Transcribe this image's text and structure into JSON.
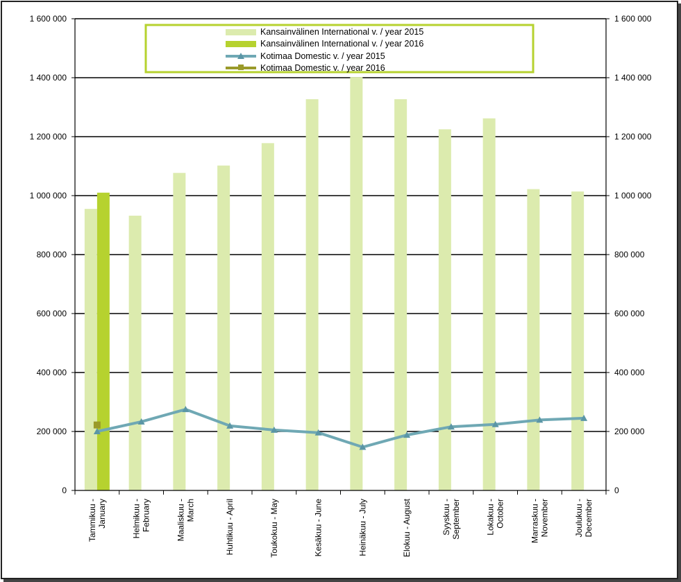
{
  "colors": {
    "intl_2015": "#dcebae",
    "intl_2016": "#b6d22f",
    "dom_2015": "#6fa8b4",
    "dom_2015_marker": "#5b96a6",
    "dom_2016": "#9a9a2a",
    "legend_border": "#b6d22f",
    "grid": "#000000"
  },
  "chart_data": {
    "type": "bar",
    "categories": [
      [
        "Tammikuu -",
        "January"
      ],
      [
        "Helmikuu -",
        "February"
      ],
      [
        "Maaliskuu -",
        "March"
      ],
      [
        "Huhtikuu - April"
      ],
      [
        "Toukokuu - May"
      ],
      [
        "Kesäkuu - June"
      ],
      [
        "Heinäkuu - July"
      ],
      [
        "Elokuu - August"
      ],
      [
        "Syyskuu -",
        "September"
      ],
      [
        "Lokakuu -",
        "October"
      ],
      [
        "Marraskuu -",
        "November"
      ],
      [
        "Joulukuu -",
        "December"
      ]
    ],
    "ylim": [
      0,
      1600000
    ],
    "yticks": [
      0,
      200000,
      400000,
      600000,
      800000,
      1000000,
      1200000,
      1400000,
      1600000
    ],
    "ytick_labels": [
      "0",
      "200 000",
      "400 000",
      "600 000",
      "800 000",
      "1 000 000",
      "1 200 000",
      "1 400 000",
      "1 600 000"
    ],
    "grid": true,
    "secondary_axis": true,
    "legend_position": "top-center",
    "series": [
      {
        "name": "Kansainvälinen International v. / year 2015",
        "kind": "bar",
        "values": [
          955000,
          932000,
          1077000,
          1102000,
          1178000,
          1327000,
          1402000,
          1327000,
          1225000,
          1262000,
          1022000,
          1014000
        ]
      },
      {
        "name": "Kansainvälinen International v. / year 2016",
        "kind": "bar",
        "values": [
          1010000,
          null,
          null,
          null,
          null,
          null,
          null,
          null,
          null,
          null,
          null,
          null
        ]
      },
      {
        "name": "Kotimaa Domestic v. / year 2015",
        "kind": "line",
        "marker": "triangle",
        "values": [
          200000,
          233000,
          275000,
          219000,
          205000,
          196000,
          147000,
          188000,
          216000,
          224000,
          239000,
          245000
        ]
      },
      {
        "name": "Kotimaa Domestic v. / year 2016",
        "kind": "line",
        "marker": "square",
        "values": [
          222000,
          null,
          null,
          null,
          null,
          null,
          null,
          null,
          null,
          null,
          null,
          null
        ]
      }
    ]
  }
}
